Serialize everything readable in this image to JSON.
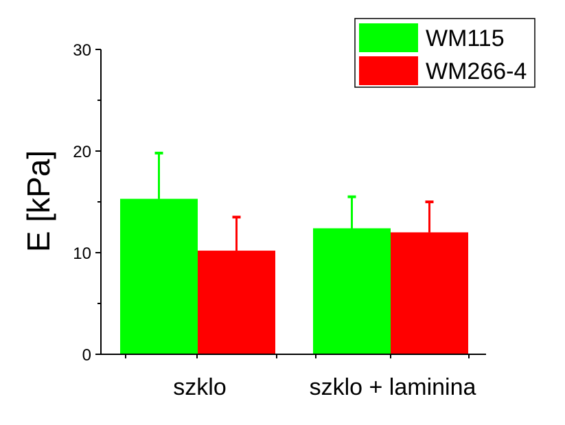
{
  "chart_data": {
    "type": "bar",
    "title": "",
    "xlabel": "",
    "ylabel": "E [kPa]",
    "categories": [
      "szklo",
      "szklo + laminina"
    ],
    "series": [
      {
        "name": "WM115",
        "color": "#00ff00",
        "values": [
          15.3,
          12.4
        ],
        "errors": [
          4.5,
          3.1
        ]
      },
      {
        "name": "WM266-4",
        "color": "#ff0000",
        "values": [
          10.2,
          12.0
        ],
        "errors": [
          3.3,
          3.0
        ]
      }
    ],
    "ylim": [
      0,
      30
    ],
    "yticks": [
      0,
      10,
      20,
      30
    ],
    "grid": false,
    "legend": "top-right"
  }
}
